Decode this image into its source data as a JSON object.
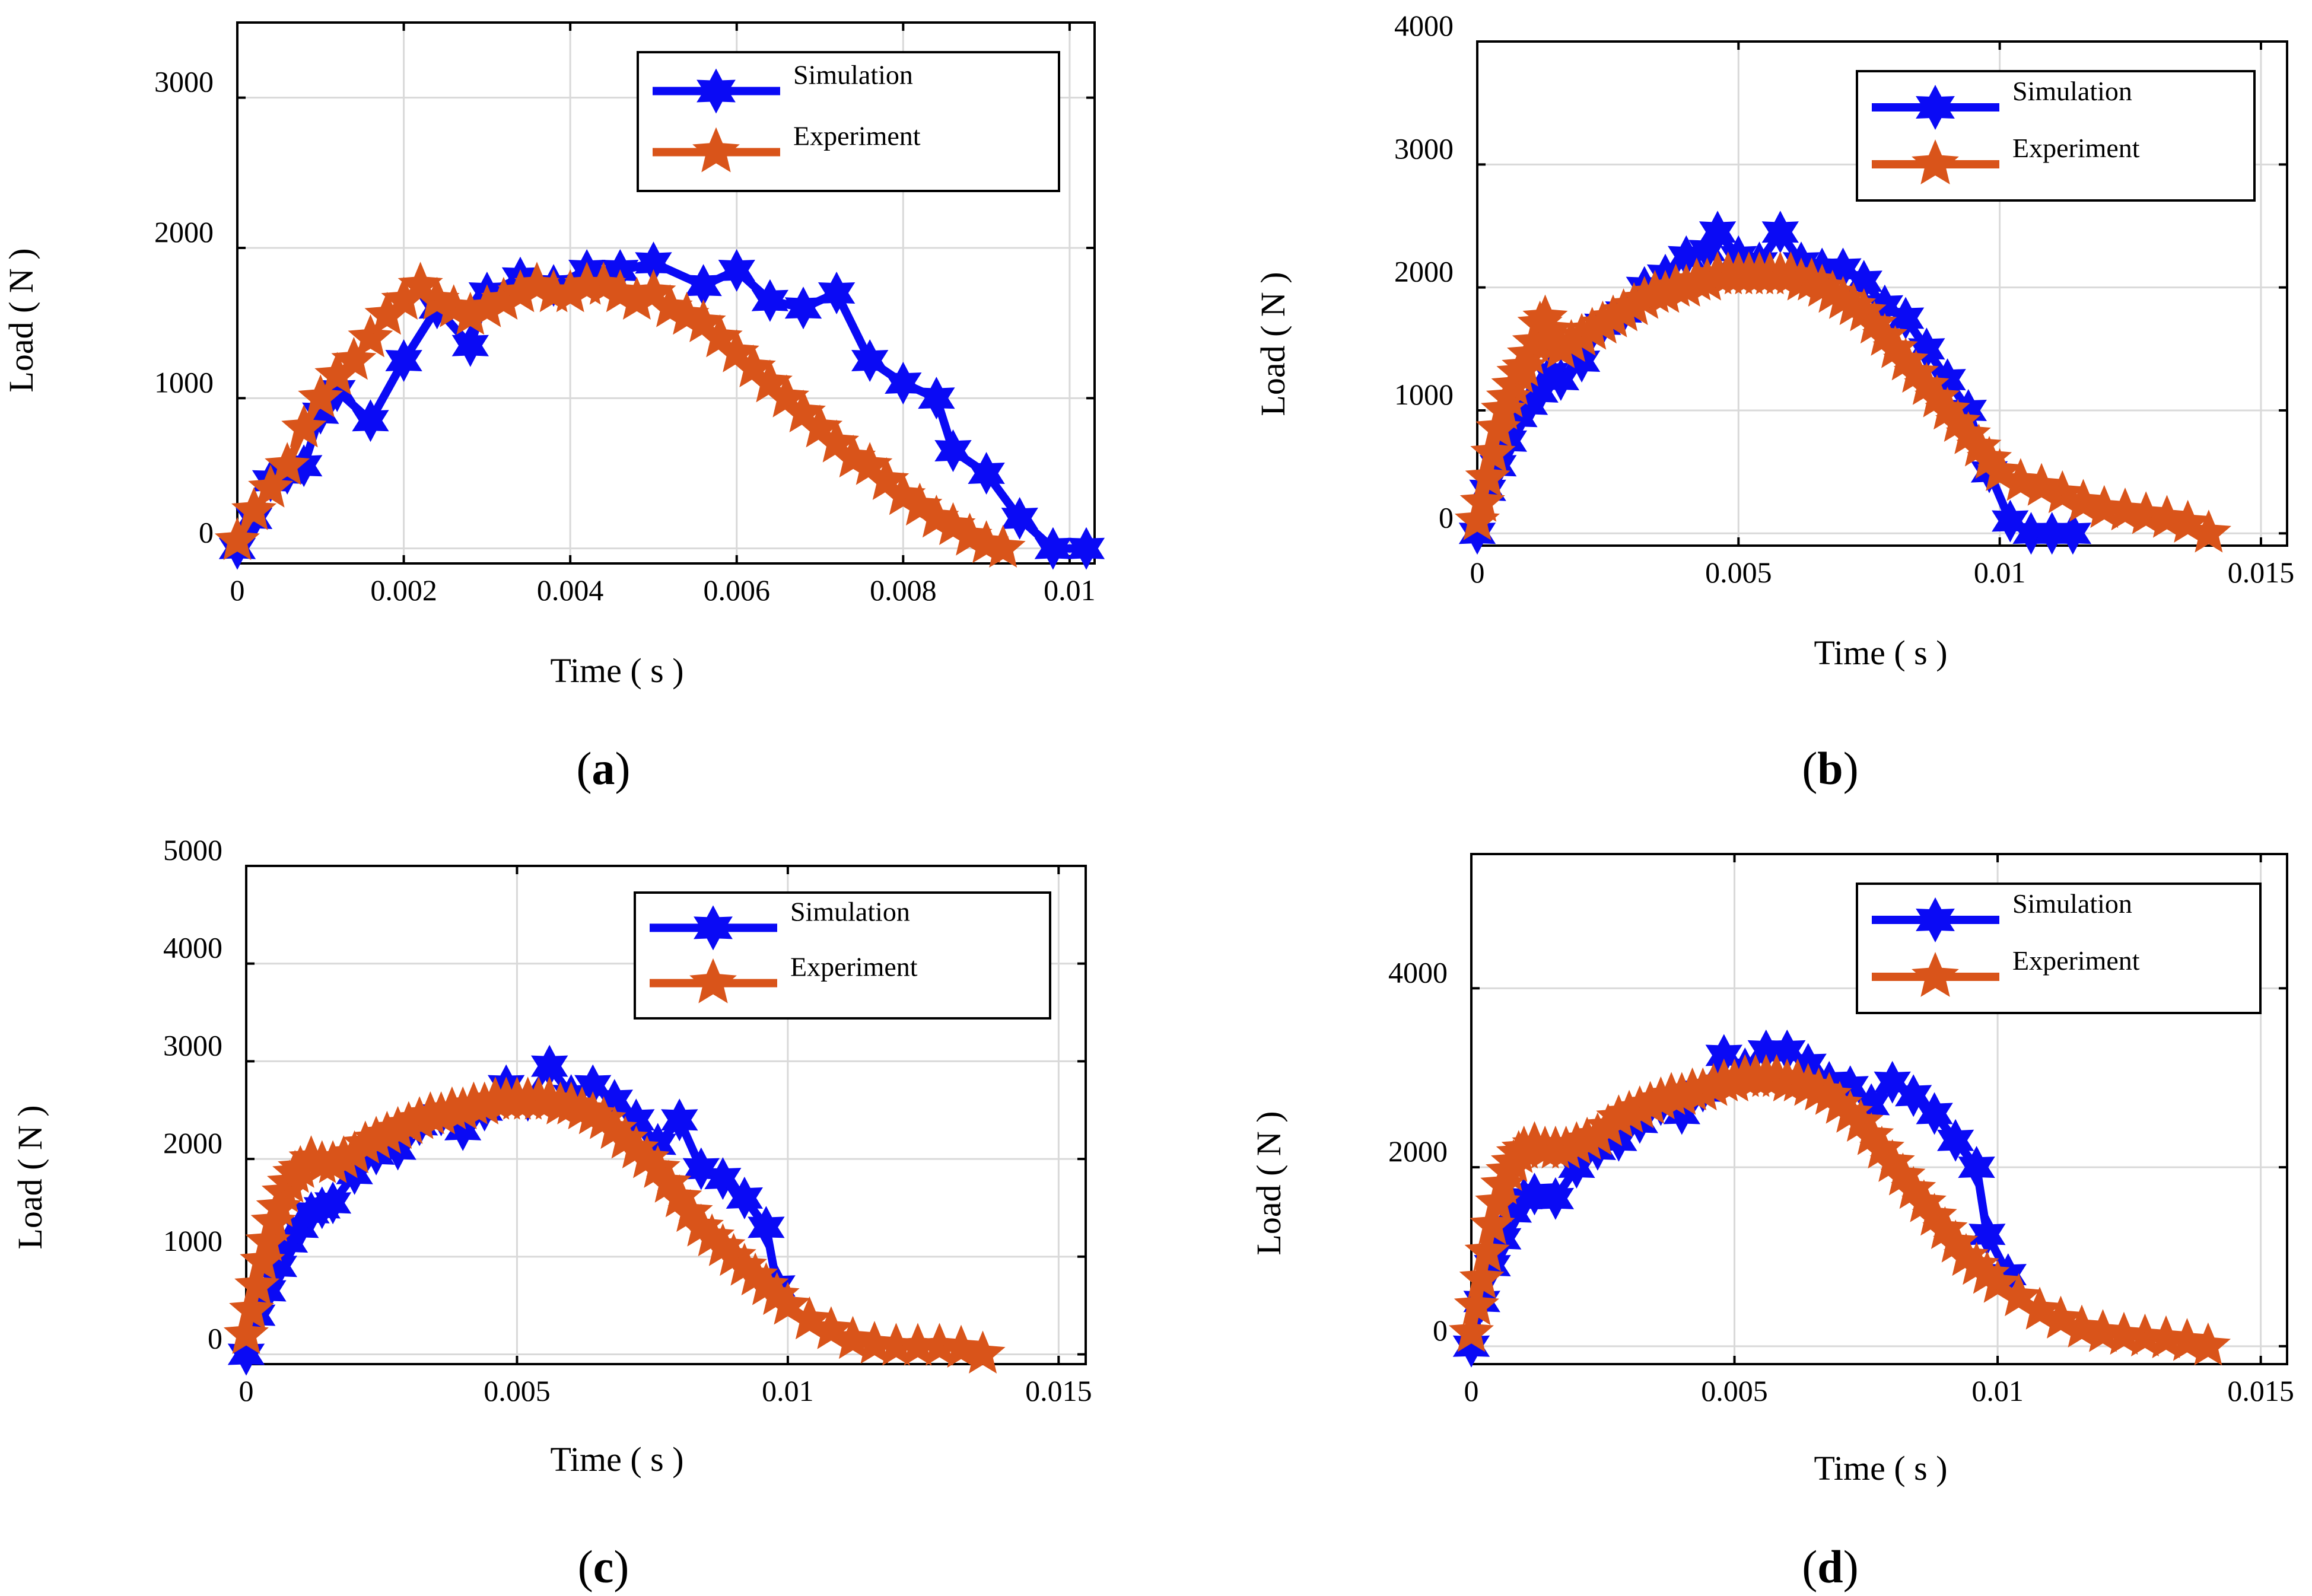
{
  "figure": {
    "captions": [
      "(a)",
      "(b)",
      "(c)",
      "(d)"
    ]
  },
  "colors": {
    "simulation": "#0a0af5",
    "experiment": "#d9541a"
  },
  "chart_data": [
    {
      "type": "line",
      "panel": "(a)",
      "xlabel": "Time ( s )",
      "ylabel": "Load ( N )",
      "xlim": [
        0,
        0.0103
      ],
      "ylim": [
        -100,
        3500
      ],
      "xticks": [
        0,
        0.002,
        0.004,
        0.006,
        0.008,
        0.01
      ],
      "xtick_labels": [
        "0",
        "0.002",
        "0.004",
        "0.006",
        "0.008",
        "0.01"
      ],
      "yticks": [
        0,
        1000,
        2000,
        3000
      ],
      "ytick_labels": [
        "0",
        "1000",
        "2000",
        "3000"
      ],
      "grid": true,
      "legend": "top-right",
      "series": [
        {
          "name": "Simulation",
          "x": [
            0,
            0.0002,
            0.0004,
            0.0006,
            0.0008,
            0.001,
            0.0012,
            0.0016,
            0.002,
            0.0024,
            0.0028,
            0.003,
            0.0034,
            0.0038,
            0.0042,
            0.0046,
            0.005,
            0.0056,
            0.006,
            0.0064,
            0.0068,
            0.0072,
            0.0076,
            0.008,
            0.0084,
            0.0086,
            0.009,
            0.0094,
            0.0098,
            0.0102
          ],
          "y": [
            0,
            200,
            450,
            500,
            550,
            900,
            1050,
            850,
            1250,
            1600,
            1350,
            1700,
            1800,
            1750,
            1850,
            1850,
            1900,
            1750,
            1850,
            1650,
            1600,
            1700,
            1250,
            1100,
            1000,
            650,
            500,
            200,
            0,
            0
          ]
        },
        {
          "name": "Experiment",
          "x": [
            0,
            0.0002,
            0.0004,
            0.0006,
            0.0008,
            0.001,
            0.0012,
            0.0014,
            0.0016,
            0.0018,
            0.002,
            0.0022,
            0.0024,
            0.0026,
            0.0028,
            0.003,
            0.0032,
            0.0034,
            0.0036,
            0.0038,
            0.004,
            0.0042,
            0.0044,
            0.0046,
            0.0048,
            0.005,
            0.0052,
            0.0054,
            0.0056,
            0.0058,
            0.006,
            0.0062,
            0.0064,
            0.0066,
            0.0068,
            0.007,
            0.0072,
            0.0074,
            0.0076,
            0.0078,
            0.008,
            0.0082,
            0.0084,
            0.0086,
            0.0088,
            0.009,
            0.0092
          ],
          "y": [
            50,
            250,
            400,
            550,
            800,
            1000,
            1150,
            1250,
            1400,
            1550,
            1650,
            1750,
            1650,
            1600,
            1550,
            1600,
            1650,
            1700,
            1750,
            1700,
            1700,
            1750,
            1750,
            1700,
            1650,
            1700,
            1600,
            1550,
            1500,
            1400,
            1300,
            1200,
            1100,
            1000,
            900,
            800,
            700,
            600,
            550,
            450,
            350,
            280,
            200,
            150,
            80,
            30,
            0
          ]
        }
      ]
    },
    {
      "type": "line",
      "panel": "(b)",
      "xlabel": "Time ( s )",
      "ylabel": "Load ( N )",
      "xlim": [
        0,
        0.0155
      ],
      "ylim": [
        -100,
        4000
      ],
      "xticks": [
        0,
        0.005,
        0.01,
        0.015
      ],
      "xtick_labels": [
        "0",
        "0.005",
        "0.01",
        "0.015"
      ],
      "yticks": [
        0,
        1000,
        2000,
        3000,
        4000
      ],
      "ytick_labels": [
        "0",
        "1000",
        "2000",
        "3000",
        "4000"
      ],
      "grid": true,
      "legend": "top-right",
      "series": [
        {
          "name": "Simulation",
          "x": [
            0,
            0.0002,
            0.0004,
            0.0006,
            0.0008,
            0.001,
            0.0012,
            0.0014,
            0.0016,
            0.002,
            0.0024,
            0.0028,
            0.0032,
            0.0036,
            0.004,
            0.0044,
            0.0046,
            0.005,
            0.0054,
            0.0058,
            0.0062,
            0.0066,
            0.007,
            0.0074,
            0.0078,
            0.0082,
            0.0086,
            0.009,
            0.0094,
            0.0098,
            0.0102,
            0.0106,
            0.011,
            0.0114
          ],
          "y": [
            0,
            350,
            550,
            750,
            950,
            1050,
            1150,
            1300,
            1250,
            1400,
            1700,
            1800,
            2000,
            2100,
            2250,
            2300,
            2450,
            2250,
            2200,
            2450,
            2200,
            2150,
            2150,
            2050,
            1850,
            1750,
            1500,
            1250,
            1000,
            500,
            100,
            0,
            0,
            0
          ]
        },
        {
          "name": "Experiment",
          "x": [
            0,
            0.0001,
            0.0002,
            0.0003,
            0.0004,
            0.0005,
            0.0006,
            0.0007,
            0.0008,
            0.0009,
            0.001,
            0.0011,
            0.0012,
            0.0013,
            0.0014,
            0.0015,
            0.0016,
            0.0018,
            0.002,
            0.0022,
            0.0024,
            0.0026,
            0.0028,
            0.003,
            0.0032,
            0.0034,
            0.0036,
            0.0038,
            0.004,
            0.0042,
            0.0044,
            0.0046,
            0.0048,
            0.005,
            0.0052,
            0.0054,
            0.0056,
            0.0058,
            0.006,
            0.0062,
            0.0064,
            0.0066,
            0.0068,
            0.007,
            0.0072,
            0.0074,
            0.0076,
            0.0078,
            0.008,
            0.0082,
            0.0084,
            0.0086,
            0.0088,
            0.009,
            0.0092,
            0.0094,
            0.0096,
            0.0098,
            0.01,
            0.0104,
            0.0108,
            0.0112,
            0.0116,
            0.012,
            0.0124,
            0.0128,
            0.0132,
            0.0136,
            0.014
          ],
          "y": [
            100,
            250,
            450,
            650,
            850,
            1000,
            1100,
            1200,
            1300,
            1350,
            1450,
            1550,
            1700,
            1750,
            1650,
            1550,
            1500,
            1550,
            1600,
            1650,
            1700,
            1750,
            1800,
            1850,
            1900,
            1950,
            1950,
            2000,
            2000,
            2050,
            2050,
            2100,
            2100,
            2100,
            2100,
            2100,
            2100,
            2100,
            2100,
            2050,
            2050,
            2000,
            1950,
            1900,
            1850,
            1800,
            1700,
            1600,
            1500,
            1400,
            1300,
            1200,
            1100,
            1000,
            900,
            800,
            700,
            600,
            500,
            420,
            380,
            320,
            250,
            200,
            180,
            150,
            120,
            80,
            0
          ]
        }
      ]
    },
    {
      "type": "line",
      "panel": "(c)",
      "xlabel": "Time ( s )",
      "ylabel": "Load ( N )",
      "xlim": [
        0,
        0.0155
      ],
      "ylim": [
        -100,
        5000
      ],
      "xticks": [
        0,
        0.005,
        0.01,
        0.015
      ],
      "xtick_labels": [
        "0",
        "0.005",
        "0.01",
        "0.015"
      ],
      "yticks": [
        0,
        1000,
        2000,
        3000,
        4000,
        5000
      ],
      "ytick_labels": [
        "0",
        "1000",
        "2000",
        "3000",
        "4000",
        "5000"
      ],
      "grid": true,
      "legend": "top-right",
      "series": [
        {
          "name": "Simulation",
          "x": [
            0,
            0.0002,
            0.0004,
            0.0006,
            0.0008,
            0.001,
            0.0012,
            0.0014,
            0.0016,
            0.002,
            0.0024,
            0.0028,
            0.0032,
            0.0036,
            0.004,
            0.0044,
            0.0048,
            0.0052,
            0.0056,
            0.006,
            0.0064,
            0.0068,
            0.0072,
            0.0076,
            0.008,
            0.0084,
            0.0088,
            0.0092,
            0.0096,
            0.0098
          ],
          "y": [
            0,
            400,
            650,
            900,
            1150,
            1300,
            1450,
            1500,
            1550,
            1850,
            2050,
            2100,
            2350,
            2450,
            2300,
            2500,
            2750,
            2600,
            2950,
            2650,
            2750,
            2600,
            2400,
            2150,
            2400,
            1900,
            1800,
            1600,
            1300,
            700
          ]
        },
        {
          "name": "Experiment",
          "x": [
            0,
            0.0001,
            0.0002,
            0.0003,
            0.0004,
            0.0005,
            0.0006,
            0.0007,
            0.0008,
            0.0009,
            0.001,
            0.0012,
            0.0014,
            0.0016,
            0.0018,
            0.002,
            0.0022,
            0.0024,
            0.0026,
            0.0028,
            0.003,
            0.0032,
            0.0034,
            0.0036,
            0.0038,
            0.004,
            0.0042,
            0.0044,
            0.0046,
            0.0048,
            0.005,
            0.0052,
            0.0054,
            0.0056,
            0.0058,
            0.006,
            0.0062,
            0.0064,
            0.0066,
            0.0068,
            0.007,
            0.0072,
            0.0074,
            0.0076,
            0.0078,
            0.008,
            0.0082,
            0.0084,
            0.0086,
            0.0088,
            0.009,
            0.0092,
            0.0094,
            0.0096,
            0.0098,
            0.01,
            0.0104,
            0.0108,
            0.0112,
            0.0116,
            0.012,
            0.0124,
            0.0128,
            0.0132,
            0.0136
          ],
          "y": [
            200,
            450,
            700,
            950,
            1150,
            1350,
            1500,
            1650,
            1750,
            1850,
            1900,
            2000,
            1950,
            1950,
            2000,
            2050,
            2150,
            2200,
            2250,
            2300,
            2350,
            2400,
            2450,
            2450,
            2500,
            2500,
            2550,
            2550,
            2600,
            2600,
            2600,
            2600,
            2600,
            2600,
            2550,
            2550,
            2500,
            2450,
            2400,
            2300,
            2200,
            2100,
            2000,
            1900,
            1750,
            1600,
            1450,
            1300,
            1200,
            1100,
            1000,
            900,
            800,
            700,
            600,
            500,
            350,
            250,
            150,
            100,
            80,
            80,
            80,
            60,
            0
          ]
        }
      ]
    },
    {
      "type": "line",
      "panel": "(d)",
      "xlabel": "Time ( s )",
      "ylabel": "Load ( N )",
      "xlim": [
        0,
        0.0155
      ],
      "ylim": [
        -200,
        5500
      ],
      "xticks": [
        0,
        0.005,
        0.01,
        0.015
      ],
      "xtick_labels": [
        "0",
        "0.005",
        "0.01",
        "0.015"
      ],
      "yticks": [
        0,
        2000,
        4000
      ],
      "ytick_labels": [
        "0",
        "2000",
        "4000"
      ],
      "grid": true,
      "legend": "top-right",
      "series": [
        {
          "name": "Simulation",
          "x": [
            0,
            0.0002,
            0.0004,
            0.0006,
            0.0008,
            0.001,
            0.0012,
            0.0016,
            0.002,
            0.0024,
            0.0028,
            0.0032,
            0.0036,
            0.004,
            0.0044,
            0.0048,
            0.0052,
            0.0056,
            0.006,
            0.0064,
            0.0068,
            0.0072,
            0.0076,
            0.008,
            0.0084,
            0.0088,
            0.0092,
            0.0096,
            0.0098,
            0.0102
          ],
          "y": [
            0,
            500,
            900,
            1200,
            1500,
            1650,
            1700,
            1650,
            2000,
            2200,
            2300,
            2500,
            2700,
            2600,
            2850,
            3250,
            3100,
            3300,
            3300,
            3150,
            2950,
            2900,
            2700,
            2950,
            2800,
            2600,
            2300,
            2000,
            1250,
            800
          ]
        },
        {
          "name": "Experiment",
          "x": [
            0,
            0.0001,
            0.0002,
            0.0003,
            0.0004,
            0.0005,
            0.0006,
            0.0007,
            0.0008,
            0.0009,
            0.001,
            0.0012,
            0.0014,
            0.0016,
            0.0018,
            0.002,
            0.0022,
            0.0024,
            0.0026,
            0.0028,
            0.003,
            0.0032,
            0.0034,
            0.0036,
            0.0038,
            0.004,
            0.0042,
            0.0044,
            0.0046,
            0.0048,
            0.005,
            0.0052,
            0.0054,
            0.0056,
            0.0058,
            0.006,
            0.0062,
            0.0064,
            0.0066,
            0.0068,
            0.007,
            0.0072,
            0.0074,
            0.0076,
            0.0078,
            0.008,
            0.0082,
            0.0084,
            0.0086,
            0.0088,
            0.009,
            0.0092,
            0.0094,
            0.0096,
            0.0098,
            0.01,
            0.0104,
            0.0108,
            0.0112,
            0.0116,
            0.012,
            0.0124,
            0.0128,
            0.0132,
            0.0136,
            0.014
          ],
          "y": [
            150,
            450,
            750,
            1050,
            1350,
            1600,
            1800,
            1950,
            2050,
            2150,
            2200,
            2250,
            2200,
            2200,
            2200,
            2250,
            2300,
            2350,
            2450,
            2550,
            2600,
            2650,
            2700,
            2750,
            2800,
            2800,
            2850,
            2850,
            2900,
            2950,
            2950,
            3000,
            3000,
            3000,
            3000,
            2950,
            2950,
            2900,
            2850,
            2800,
            2700,
            2600,
            2500,
            2350,
            2200,
            2050,
            1900,
            1750,
            1600,
            1450,
            1300,
            1150,
            1000,
            900,
            800,
            700,
            550,
            400,
            300,
            200,
            150,
            120,
            100,
            80,
            50,
            0
          ]
        }
      ]
    }
  ]
}
